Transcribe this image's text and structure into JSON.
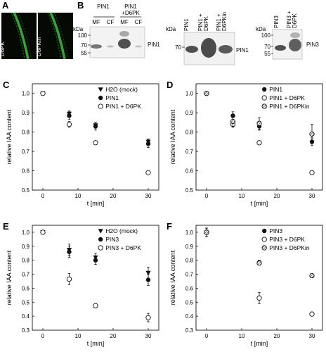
{
  "panel_a": {
    "label": "A",
    "images": [
      {
        "label": "D6PK"
      },
      {
        "label": "D6PKin"
      }
    ]
  },
  "panel_b": {
    "label": "B",
    "blots": [
      {
        "kda_label": "kDa",
        "kda_marks": [
          "100",
          "70",
          "55"
        ],
        "col_headers": [
          "PIN1",
          "PIN1\n+D6PK"
        ],
        "lane_labels": [
          "MF",
          "CF",
          "MF",
          "CF"
        ],
        "protein": "PIN1"
      },
      {
        "kda_label": "kDa",
        "kda_marks": [
          "70"
        ],
        "lane_labels": [
          "PIN1",
          "PIN1 + D6PK",
          "PIN1 + D6PKin"
        ],
        "protein": "PIN1"
      },
      {
        "kda_label": "kDa",
        "kda_marks": [
          "100",
          "70",
          "55"
        ],
        "lane_labels": [
          "PIN3",
          "PIN3 + D6PK"
        ],
        "protein": "PIN3"
      }
    ]
  },
  "chart_data": [
    {
      "panel": "C",
      "type": "scatter",
      "xlabel": "t [min]",
      "ylabel": "relative IAA content",
      "xlim": [
        -3,
        33
      ],
      "ylim": [
        0.5,
        1.05
      ],
      "xticks": [
        0,
        10,
        20,
        30
      ],
      "yticks": [
        0.5,
        0.6,
        0.7,
        0.8,
        0.9,
        1.0
      ],
      "legend_position": "top-right",
      "series": [
        {
          "name": "H2O (mock)",
          "marker": "triangle-down",
          "x": [
            0,
            7.5,
            15,
            30
          ],
          "y": [
            1.0,
            0.895,
            0.835,
            0.75
          ],
          "err": [
            0.01,
            0.015,
            0.015,
            0.015
          ]
        },
        {
          "name": "PIN1",
          "marker": "filled-circle",
          "x": [
            0,
            7.5,
            15,
            30
          ],
          "y": [
            1.0,
            0.885,
            0.83,
            0.74
          ],
          "err": [
            0.01,
            0.02,
            0.02,
            0.02
          ]
        },
        {
          "name": "PIN1 + D6PK",
          "marker": "open-circle",
          "x": [
            0,
            7.5,
            15,
            30
          ],
          "y": [
            1.0,
            0.84,
            0.745,
            0.59
          ],
          "err": [
            0.01,
            0.015,
            0.01,
            0.01
          ]
        }
      ]
    },
    {
      "panel": "D",
      "type": "scatter",
      "xlabel": "t [min]",
      "ylabel": "relative IAA content",
      "xlim": [
        -3,
        33
      ],
      "ylim": [
        0.5,
        1.05
      ],
      "xticks": [
        0,
        10,
        20,
        30
      ],
      "yticks": [
        0.5,
        0.6,
        0.7,
        0.8,
        0.9,
        1.0
      ],
      "legend_position": "top-right",
      "series": [
        {
          "name": "PIN1",
          "marker": "filled-circle",
          "x": [
            0,
            7.5,
            15,
            30
          ],
          "y": [
            1.0,
            0.885,
            0.83,
            0.75
          ],
          "err": [
            0.01,
            0.02,
            0.02,
            0.02
          ]
        },
        {
          "name": "PIN1 + D6PK",
          "marker": "open-circle",
          "x": [
            0,
            7.5,
            15,
            30
          ],
          "y": [
            1.0,
            0.84,
            0.745,
            0.59
          ],
          "err": [
            0.01,
            0.015,
            0.01,
            0.01
          ]
        },
        {
          "name": "PIN1 + D6PKin",
          "marker": "hatched-circle",
          "x": [
            0,
            7.5,
            15,
            30
          ],
          "y": [
            1.0,
            0.855,
            0.845,
            0.79
          ],
          "err": [
            0.01,
            0.025,
            0.03,
            0.05
          ]
        }
      ]
    },
    {
      "panel": "E",
      "type": "scatter",
      "xlabel": "t [min]",
      "ylabel": "relative IAA content",
      "xlim": [
        -3,
        33
      ],
      "ylim": [
        0.3,
        1.05
      ],
      "xticks": [
        0,
        10,
        20,
        30
      ],
      "yticks": [
        0.3,
        0.4,
        0.5,
        0.6,
        0.7,
        0.8,
        0.9,
        1.0
      ],
      "legend_position": "top-right",
      "series": [
        {
          "name": "H2O (mock)",
          "marker": "triangle-down",
          "x": [
            0,
            7.5,
            15,
            30
          ],
          "y": [
            1.0,
            0.875,
            0.82,
            0.71
          ],
          "err": [
            0.01,
            0.04,
            0.03,
            0.04
          ]
        },
        {
          "name": "PIN3",
          "marker": "filled-circle",
          "x": [
            0,
            7.5,
            15,
            30
          ],
          "y": [
            1.0,
            0.86,
            0.8,
            0.66
          ],
          "err": [
            0.01,
            0.04,
            0.03,
            0.04
          ]
        },
        {
          "name": "PIN3 + D6PK",
          "marker": "open-circle",
          "x": [
            0,
            7.5,
            15,
            30
          ],
          "y": [
            1.0,
            0.665,
            0.475,
            0.39
          ],
          "err": [
            0.01,
            0.04,
            0.015,
            0.03
          ]
        }
      ]
    },
    {
      "panel": "F",
      "type": "scatter",
      "xlabel": "t [min]",
      "ylabel": "relative IAA content",
      "xlim": [
        -3,
        33
      ],
      "ylim": [
        0.3,
        1.05
      ],
      "xticks": [
        0,
        10,
        20,
        30
      ],
      "yticks": [
        0.3,
        0.4,
        0.5,
        0.6,
        0.7,
        0.8,
        0.9,
        1.0
      ],
      "legend_position": "top-right",
      "series": [
        {
          "name": "PIN3",
          "marker": "filled-circle",
          "x": [
            0,
            15,
            30
          ],
          "y": [
            1.0,
            0.785,
            0.69
          ],
          "err": [
            0.03,
            0.015,
            0.015
          ]
        },
        {
          "name": "PIN3 + D6PK",
          "marker": "open-circle",
          "x": [
            0,
            15,
            30
          ],
          "y": [
            1.0,
            0.53,
            0.415
          ],
          "err": [
            0.03,
            0.04,
            0.015
          ]
        },
        {
          "name": "PIN3 + D6PKin",
          "marker": "hatched-circle",
          "x": [
            0,
            15,
            30
          ],
          "y": [
            1.0,
            0.78,
            0.69
          ],
          "err": [
            0.03,
            0.015,
            0.015
          ]
        }
      ]
    }
  ]
}
